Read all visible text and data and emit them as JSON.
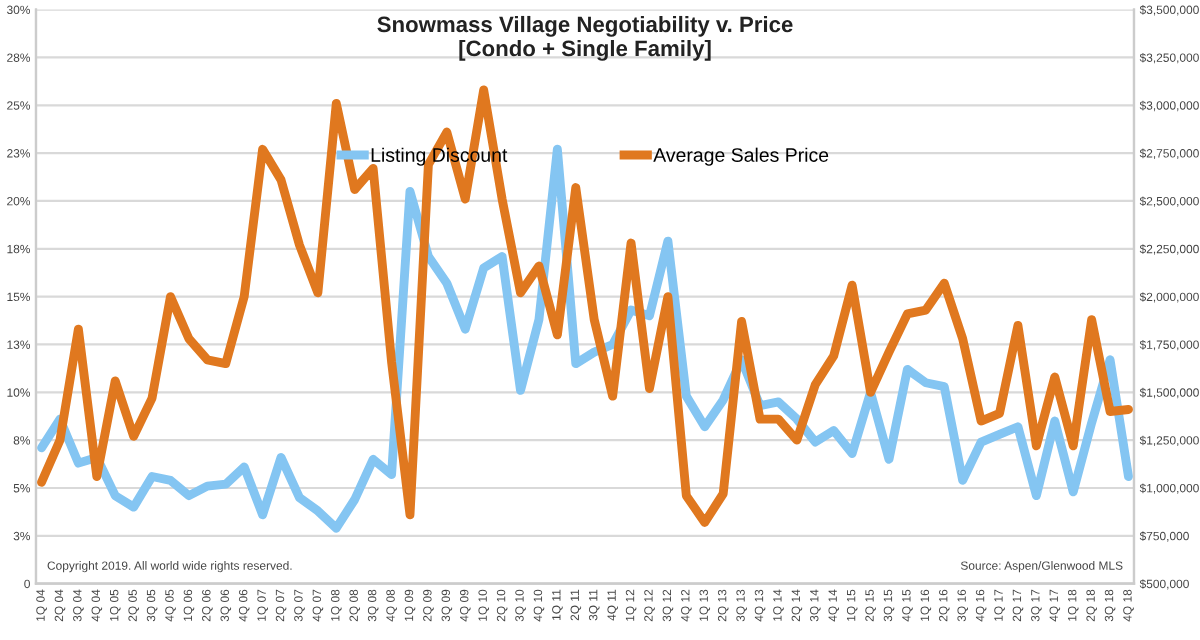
{
  "chart_data": {
    "type": "line",
    "title": "Snowmass Village Negotiability v. Price\n[Condo + Single Family]",
    "categories": [
      "1Q 04",
      "2Q 04",
      "3Q 04",
      "4Q 04",
      "1Q 05",
      "2Q 05",
      "3Q 05",
      "4Q 05",
      "1Q 06",
      "2Q 06",
      "3Q 06",
      "4Q 06",
      "1Q 07",
      "2Q 07",
      "3Q 07",
      "4Q 07",
      "1Q 08",
      "2Q 08",
      "3Q 08",
      "4Q 08",
      "1Q 09",
      "2Q 09",
      "3Q 09",
      "4Q 09",
      "1Q 10",
      "2Q 10",
      "3Q 10",
      "4Q 10",
      "1Q 11",
      "2Q 11",
      "3Q 11",
      "4Q 11",
      "1Q 12",
      "2Q 12",
      "3Q 12",
      "4Q 12",
      "1Q 13",
      "2Q 13",
      "3Q 13",
      "4Q 13",
      "1Q 14",
      "2Q 14",
      "3Q 14",
      "4Q 14",
      "1Q 15",
      "2Q 15",
      "3Q 15",
      "4Q 15",
      "1Q 16",
      "2Q 16",
      "3Q 16",
      "4Q 16",
      "1Q 17",
      "2Q 17",
      "3Q 17",
      "4Q 17",
      "1Q 18",
      "2Q 18",
      "3Q 18",
      "4Q 18"
    ],
    "series": [
      {
        "name": "Listing Discount",
        "color": "#84c5f2",
        "values": [
          7.1,
          8.6,
          6.3,
          6.6,
          4.6,
          4.0,
          5.6,
          5.4,
          4.6,
          5.1,
          5.2,
          6.1,
          3.6,
          6.6,
          4.5,
          3.8,
          2.9,
          4.4,
          6.5,
          5.7,
          20.5,
          17.1,
          15.7,
          13.3,
          16.5,
          17.1,
          10.1,
          13.8,
          22.7,
          11.5,
          12.1,
          12.5,
          14.3,
          14.0,
          17.9,
          9.8,
          8.2,
          9.6,
          11.7,
          9.3,
          9.5,
          8.6,
          7.4,
          8.0,
          6.8,
          10.0,
          6.5,
          11.2,
          10.5,
          10.3,
          5.4,
          7.4,
          7.8,
          8.2,
          4.6,
          8.5,
          4.8,
          8.4,
          11.7,
          5.6
        ]
      },
      {
        "name": "Average Sales Price",
        "color": "#e0781f",
        "axis": "y2",
        "values": [
          1030000,
          1250000,
          1830000,
          1060000,
          1560000,
          1270000,
          1470000,
          2000000,
          1780000,
          1670000,
          1650000,
          2000000,
          2770000,
          2610000,
          2270000,
          2020000,
          3010000,
          2560000,
          2670000,
          1660000,
          860000,
          2690000,
          2860000,
          2510000,
          3080000,
          2510000,
          2020000,
          2160000,
          1800000,
          2570000,
          1880000,
          1480000,
          2280000,
          1520000,
          2000000,
          960000,
          820000,
          970000,
          1870000,
          1360000,
          1360000,
          1250000,
          1540000,
          1690000,
          2060000,
          1500000,
          1710000,
          1910000,
          1930000,
          2070000,
          1780000,
          1350000,
          1390000,
          1850000,
          1220000,
          1580000,
          1220000,
          1880000,
          1400000,
          1410000
        ]
      }
    ],
    "ylim": [
      0,
      30
    ],
    "yticks": [
      0,
      {
        "value": 2.5,
        "label": "3%"
      },
      {
        "value": 5,
        "label": "5%"
      },
      {
        "value": 7.5,
        "label": "8%"
      },
      {
        "value": 10,
        "label": "10%"
      },
      {
        "value": 12.5,
        "label": "13%"
      },
      {
        "value": 15,
        "label": "15%"
      },
      {
        "value": 17.5,
        "label": "18%"
      },
      {
        "value": 20,
        "label": "20%"
      },
      {
        "value": 22.5,
        "label": "23%"
      },
      {
        "value": 25,
        "label": "25%"
      },
      {
        "value": 27.5,
        "label": "28%"
      },
      {
        "value": 30,
        "label": "30%"
      }
    ],
    "y2lim": [
      500000,
      3500000
    ],
    "y2ticks": [
      {
        "value": 500000,
        "label": "$500,000"
      },
      {
        "value": 750000,
        "label": "$750,000"
      },
      {
        "value": 1000000,
        "label": "$1,000,000"
      },
      {
        "value": 1250000,
        "label": "$1,250,000"
      },
      {
        "value": 1500000,
        "label": "$1,500,000"
      },
      {
        "value": 1750000,
        "label": "$1,750,000"
      },
      {
        "value": 2000000,
        "label": "$2,000,000"
      },
      {
        "value": 2250000,
        "label": "$2,250,000"
      },
      {
        "value": 2500000,
        "label": "$2,500,000"
      },
      {
        "value": 2750000,
        "label": "$2,750,000"
      },
      {
        "value": 3000000,
        "label": "$3,000,000"
      },
      {
        "value": 3250000,
        "label": "$3,250,000"
      },
      {
        "value": 3500000,
        "label": "$3,500,000"
      }
    ],
    "grid": "y",
    "legend": "top",
    "marker": "none",
    "line_style": "solid",
    "annotations": [
      "Copyright 2019. All world wide rights reserved.",
      "Source: Aspen/Glenwood MLS"
    ]
  }
}
